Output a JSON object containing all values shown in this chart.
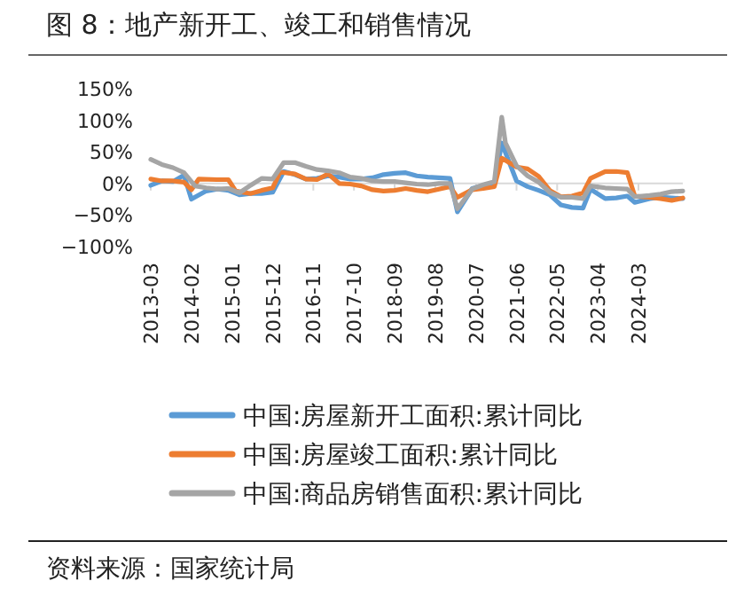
{
  "chart_data": {
    "type": "line",
    "title": "图 8：地产新开工、竣工和销售情况",
    "annotations": [
      "资料来源：国家统计局"
    ],
    "xlim": [
      "2013-03",
      "2025-03"
    ],
    "xticks": [
      "2013-03",
      "2014-02",
      "2015-01",
      "2015-12",
      "2016-11",
      "2017-10",
      "2018-09",
      "2019-08",
      "2020-07",
      "2021-06",
      "2022-05",
      "2023-04",
      "2024-03"
    ],
    "ylim": [
      -100,
      150
    ],
    "yticks": [
      {
        "value": 150,
        "label": "150%"
      },
      {
        "value": 100,
        "label": "100%"
      },
      {
        "value": 50,
        "label": "50%"
      },
      {
        "value": 0,
        "label": "0%"
      },
      {
        "value": -50,
        "label": "−50%"
      },
      {
        "value": -100,
        "label": "−100%"
      }
    ],
    "legend": "bottom",
    "marker": "none",
    "line_style": "solid",
    "series": [
      {
        "name": "中国:房屋新开工面积:累计同比",
        "color": "#5b9bd5",
        "x": [
          "2013-03",
          "2013-06",
          "2013-09",
          "2013-12",
          "2014-02",
          "2014-06",
          "2014-09",
          "2014-12",
          "2015-03",
          "2015-06",
          "2015-09",
          "2015-12",
          "2016-03",
          "2016-06",
          "2016-09",
          "2016-12",
          "2017-03",
          "2017-06",
          "2017-09",
          "2017-12",
          "2018-03",
          "2018-06",
          "2018-09",
          "2018-12",
          "2019-03",
          "2019-06",
          "2019-09",
          "2019-12",
          "2020-02",
          "2020-06",
          "2020-09",
          "2020-12",
          "2021-02",
          "2021-06",
          "2021-09",
          "2021-12",
          "2022-03",
          "2022-06",
          "2022-09",
          "2022-12",
          "2023-02",
          "2023-06",
          "2023-09",
          "2023-12",
          "2024-02",
          "2024-06",
          "2024-09",
          "2024-12",
          "2025-03"
        ],
        "values": [
          -3,
          4,
          3,
          13,
          -25,
          -12,
          -9,
          -11,
          -18,
          -16,
          -16,
          -14,
          19,
          14,
          7,
          8,
          12,
          10,
          7,
          7,
          9,
          14,
          16,
          17,
          12,
          10,
          9,
          8,
          -45,
          -8,
          -3,
          -1,
          64,
          4,
          -5,
          -11,
          -18,
          -34,
          -38,
          -39,
          -9,
          -24,
          -23,
          -20,
          -30,
          -24,
          -22,
          -23,
          -24
        ]
      },
      {
        "name": "中国:房屋竣工面积:累计同比",
        "color": "#ed7d31",
        "x": [
          "2013-03",
          "2013-06",
          "2013-09",
          "2013-12",
          "2014-02",
          "2014-04",
          "2014-09",
          "2014-12",
          "2015-02",
          "2015-06",
          "2015-09",
          "2015-12",
          "2016-02",
          "2016-06",
          "2016-09",
          "2016-12",
          "2017-03",
          "2017-06",
          "2017-09",
          "2017-12",
          "2018-03",
          "2018-06",
          "2018-09",
          "2018-12",
          "2019-03",
          "2019-06",
          "2019-09",
          "2019-12",
          "2020-02",
          "2020-06",
          "2020-09",
          "2020-12",
          "2021-02",
          "2021-06",
          "2021-09",
          "2021-12",
          "2022-03",
          "2022-06",
          "2022-09",
          "2022-12",
          "2023-02",
          "2023-06",
          "2023-09",
          "2023-12",
          "2024-02",
          "2024-06",
          "2024-09",
          "2024-12",
          "2025-03"
        ],
        "values": [
          7,
          4,
          4,
          2,
          -10,
          7,
          6,
          6,
          -12,
          -16,
          -11,
          -7,
          18,
          15,
          7,
          6,
          15,
          0,
          -1,
          -4,
          -10,
          -12,
          -11,
          -8,
          -11,
          -13,
          -9,
          -5,
          -22,
          -10,
          -8,
          -5,
          40,
          26,
          23,
          11,
          -11,
          -21,
          -20,
          -15,
          8,
          19,
          19,
          17,
          -20,
          -22,
          -24,
          -27,
          -23
        ]
      },
      {
        "name": "中国:商品房销售面积:累计同比",
        "color": "#a5a5a5",
        "x": [
          "2013-03",
          "2013-06",
          "2013-09",
          "2013-12",
          "2014-03",
          "2014-06",
          "2014-09",
          "2014-12",
          "2015-03",
          "2015-06",
          "2015-09",
          "2015-12",
          "2016-03",
          "2016-06",
          "2016-09",
          "2016-12",
          "2017-03",
          "2017-06",
          "2017-09",
          "2017-12",
          "2018-03",
          "2018-06",
          "2018-09",
          "2018-12",
          "2019-03",
          "2019-06",
          "2019-09",
          "2019-12",
          "2020-02",
          "2020-06",
          "2020-09",
          "2020-12",
          "2021-02",
          "2021-03",
          "2021-06",
          "2021-09",
          "2021-12",
          "2022-03",
          "2022-06",
          "2022-09",
          "2022-12",
          "2023-02",
          "2023-06",
          "2023-09",
          "2023-12",
          "2024-02",
          "2024-06",
          "2024-09",
          "2024-12",
          "2025-03"
        ],
        "values": [
          38,
          30,
          25,
          17,
          -4,
          -7,
          -9,
          -8,
          -15,
          -3,
          8,
          7,
          33,
          33,
          27,
          22,
          20,
          17,
          10,
          8,
          4,
          3,
          3,
          1,
          -1,
          -2,
          0,
          0,
          -40,
          -9,
          -2,
          3,
          105,
          64,
          28,
          12,
          2,
          -14,
          -22,
          -22,
          -24,
          -4,
          -7,
          -8,
          -9,
          -21,
          -19,
          -17,
          -13,
          -12
        ]
      }
    ]
  }
}
